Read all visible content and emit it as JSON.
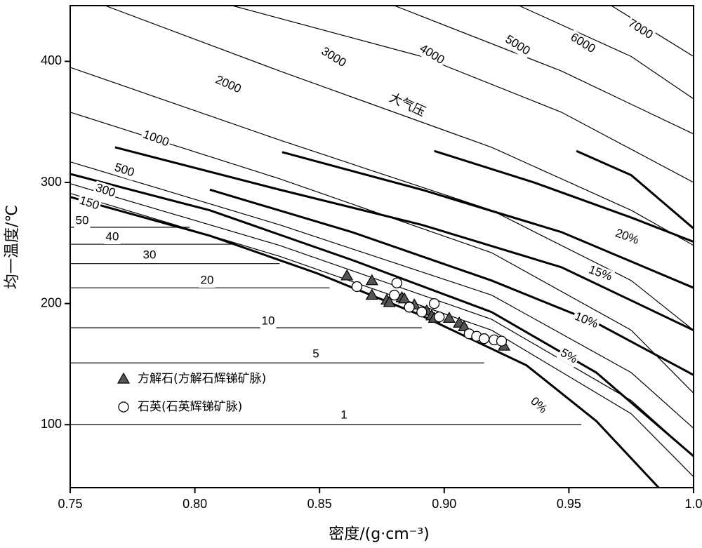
{
  "chart_data": {
    "type": "scatter",
    "xlabel": "密度/(g·cm⁻³)",
    "ylabel": "均一温度/℃",
    "xlim": [
      0.75,
      1.0
    ],
    "ylim": [
      48,
      446
    ],
    "xticks": [
      0.75,
      {
        "value": 0.8,
        "label": "0.80"
      },
      0.85,
      {
        "value": 0.9,
        "label": "0.90"
      },
      0.95,
      {
        "value": 1.0,
        "label": "1.0"
      }
    ],
    "yticks": [
      100,
      200,
      300,
      400
    ],
    "annotation": "大气压",
    "series": [
      {
        "name": "方解石(方解石辉锑矿脉)",
        "marker": "triangle",
        "color": "#555555",
        "x": [
          0.861,
          0.871,
          0.871,
          0.877,
          0.878,
          0.883,
          0.884,
          0.888,
          0.893,
          0.895,
          0.896,
          0.902,
          0.906,
          0.908,
          0.924
        ],
        "values": [
          223,
          219,
          207,
          203,
          201,
          205,
          204,
          199,
          194,
          190,
          188,
          188,
          184,
          181,
          165
        ]
      },
      {
        "name": "石英(石英辉锑矿脉)",
        "marker": "circle",
        "color": "#ffffff",
        "x": [
          0.865,
          0.881,
          0.88,
          0.886,
          0.891,
          0.896,
          0.898,
          0.91,
          0.913,
          0.916,
          0.92,
          0.923
        ],
        "values": [
          214,
          217,
          207,
          197,
          193,
          200,
          189,
          175,
          173,
          171,
          170,
          169
        ]
      }
    ],
    "curves": [
      {
        "label": "1",
        "bold": false,
        "x": [
          0.75,
          0.955
        ],
        "y": [
          100,
          100
        ]
      },
      {
        "label": "5",
        "bold": false,
        "x": [
          0.75,
          0.916
        ],
        "y": [
          151,
          151
        ]
      },
      {
        "label": "10",
        "bold": false,
        "x": [
          0.75,
          0.891
        ],
        "y": [
          180,
          180
        ]
      },
      {
        "label": "20",
        "bold": false,
        "x": [
          0.75,
          0.854
        ],
        "y": [
          213,
          213
        ]
      },
      {
        "label": "30",
        "bold": false,
        "x": [
          0.75,
          0.834
        ],
        "y": [
          233,
          233
        ]
      },
      {
        "label": "40",
        "bold": false,
        "x": [
          0.75,
          0.815
        ],
        "y": [
          249,
          249
        ]
      },
      {
        "label": "50",
        "bold": false,
        "x": [
          0.75,
          0.798
        ],
        "y": [
          263,
          263
        ]
      },
      {
        "label": "150",
        "bold": false,
        "x": [
          0.75,
          0.834,
          0.919,
          0.975,
          1.0
        ],
        "y": [
          291,
          239,
          178,
          109,
          57
        ]
      },
      {
        "label": "300",
        "bold": false,
        "x": [
          0.75,
          0.834,
          0.919,
          0.975,
          1.0
        ],
        "y": [
          299,
          248,
          187,
          120,
          74
        ]
      },
      {
        "label": "500",
        "bold": false,
        "x": [
          0.75,
          0.834,
          0.919,
          0.975,
          1.0
        ],
        "y": [
          317,
          265,
          207,
          143,
          97
        ]
      },
      {
        "label": "1000",
        "bold": false,
        "x": [
          0.75,
          0.834,
          0.919,
          0.975,
          1.0
        ],
        "y": [
          358,
          303,
          242,
          178,
          126
        ]
      },
      {
        "label": "2000",
        "bold": false,
        "x": [
          0.75,
          0.834,
          0.919,
          0.975,
          1.0
        ],
        "y": [
          395,
          335,
          277,
          219,
          178
        ]
      },
      {
        "label": "3000",
        "bold": false,
        "x": [
          0.764,
          0.834,
          0.919,
          0.975,
          1.0
        ],
        "y": [
          446,
          392,
          329,
          277,
          248
        ]
      },
      {
        "label": "4000",
        "bold": false,
        "x": [
          0.815,
          0.891,
          0.947,
          1.0
        ],
        "y": [
          446,
          404,
          358,
          300
        ]
      },
      {
        "label": "5000",
        "bold": false,
        "x": [
          0.88,
          0.947,
          1.0
        ],
        "y": [
          446,
          392,
          340
        ]
      },
      {
        "label": "6000",
        "bold": false,
        "x": [
          0.93,
          0.975,
          1.0
        ],
        "y": [
          446,
          404,
          369
        ]
      },
      {
        "label": "7000",
        "bold": false,
        "x": [
          0.967,
          1.0
        ],
        "y": [
          446,
          404
        ]
      },
      {
        "label": "0%",
        "bold": true,
        "x": [
          0.75,
          0.806,
          0.849,
          0.891,
          0.933,
          0.961,
          0.986
        ],
        "y": [
          288,
          256,
          225,
          190,
          149,
          103,
          48
        ]
      },
      {
        "label": "5%",
        "bold": true,
        "x": [
          0.75,
          0.806,
          0.863,
          0.919,
          0.961,
          1.0
        ],
        "y": [
          307,
          277,
          236,
          193,
          143,
          74
        ]
      },
      {
        "label": "10%",
        "bold": true,
        "x": [
          0.806,
          0.863,
          0.919,
          0.961,
          1.0
        ],
        "y": [
          294,
          259,
          219,
          184,
          141
        ]
      },
      {
        "label": "15%",
        "bold": true,
        "x": [
          0.768,
          0.834,
          0.891,
          0.947,
          1.0
        ],
        "y": [
          329,
          294,
          265,
          230,
          178
        ]
      },
      {
        "label": "20%",
        "bold": true,
        "x": [
          0.835,
          0.891,
          0.947,
          1.0
        ],
        "y": [
          325,
          294,
          259,
          213
        ]
      },
      {
        "label": null,
        "bold": true,
        "x": [
          0.896,
          0.936,
          0.975,
          1.0
        ],
        "y": [
          326,
          300,
          271,
          251
        ]
      },
      {
        "label": null,
        "bold": true,
        "x": [
          0.953,
          0.975,
          1.0
        ],
        "y": [
          326,
          306,
          262
        ]
      }
    ]
  }
}
